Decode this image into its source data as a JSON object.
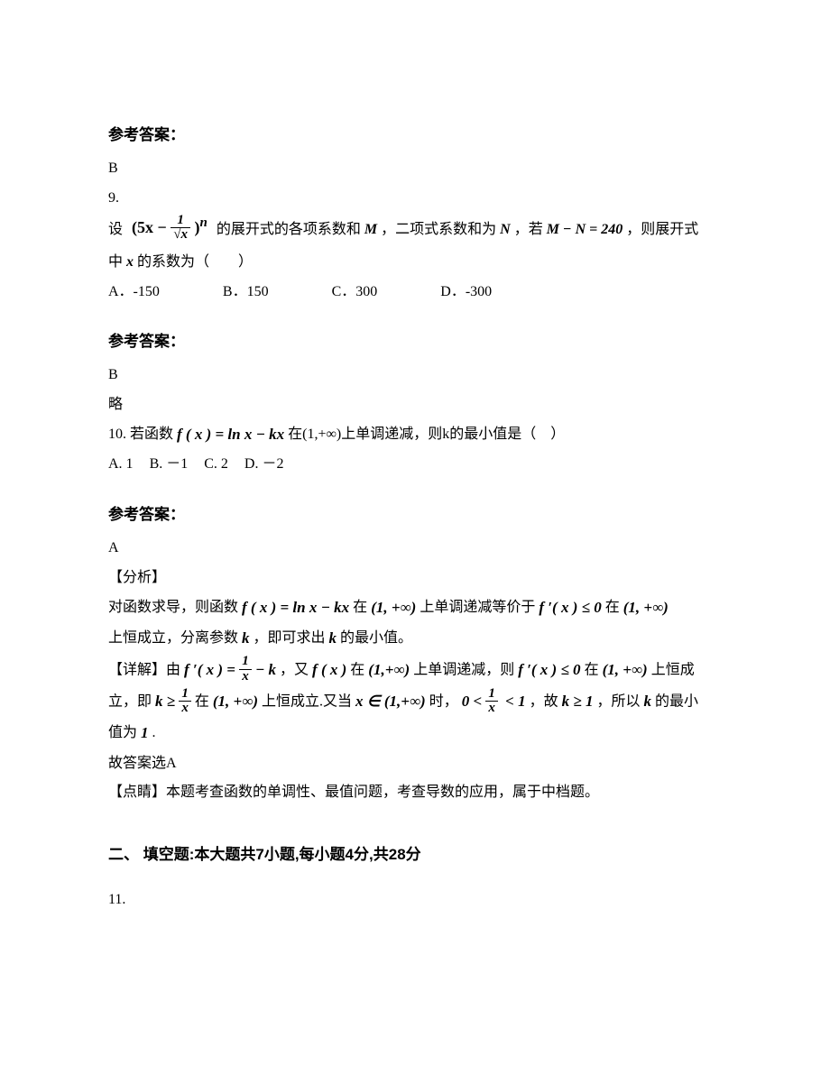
{
  "ans_heading": "参考答案：",
  "q8_answer": "B",
  "q9": {
    "num": "9.",
    "prefix": "设",
    "expr_lead": "(5x −",
    "expr_frac_num": "1",
    "expr_frac_den": "√x",
    "expr_tail": ")",
    "expr_sup": "n",
    "mid1": " 的展开式的各项系数和 ",
    "M": "M",
    "mid2": "，二项式系数和为 ",
    "N": "N",
    "mid3": "，若 ",
    "eqn": "M − N = 240",
    "mid4": "，则展开式",
    "line2_pre": "中 ",
    "x": "x",
    "line2_post": " 的系数为（　　）",
    "optA": "A．-150",
    "optB": "B．150",
    "optC": "C．300",
    "optD": "D．-300",
    "answer": "B",
    "note": "略"
  },
  "q10": {
    "num": "10. ",
    "pre": "若函数 ",
    "fx": "f ( x ) = ln x − kx",
    "mid": " 在(1,+∞)上单调递减，则k的最小值是（　）",
    "optA": "A. 1",
    "optB": "B. －1",
    "optC": "C. 2",
    "optD": "D. －2",
    "answer": "A",
    "analysis_label": "【分析】",
    "analysis_p1a": "对函数求导，则函数 ",
    "f1": "f ( x ) = ln x − kx",
    "analysis_p1b": " 在 ",
    "int1": "(1, +∞)",
    "analysis_p1c": " 上单调递减等价于 ",
    "fpx0": "f ′( x ) ≤ 0",
    "analysis_p1d": " 在 ",
    "int2": "(1, +∞)",
    "analysis_p2a": "上恒成立，分离参数 ",
    "k": "k",
    "analysis_p2b": "，即可求出 ",
    "analysis_p2c": " 的最小值。",
    "detail_label": "【详解】由 ",
    "fpx_a": "f ′( x ) =",
    "frac1n": "1",
    "frac1d": "x",
    "fpx_b": " − k",
    "detail_mid1": "，又 ",
    "fxi": "f ( x )",
    "detail_mid2": " 在 ",
    "int3": "(1,+∞)",
    "detail_mid3": " 上单调递减，则 ",
    "fpx0b": "f ′( x ) ≤ 0",
    "detail_mid4": " 在 ",
    "int4": "(1, +∞)",
    "detail_mid5": " 上恒成",
    "line4a": "立，即 ",
    "kge": "k ≥",
    "frac2n": "1",
    "frac2d": "x",
    "line4b": " 在 ",
    "int5": "(1, +∞)",
    "line4c": " 上恒成立.又当 ",
    "xin": "x ∈ (1,+∞)",
    "line4d": " 时，",
    "ineq_l": "0 <",
    "frac3n": "1",
    "frac3d": "x",
    "ineq_r": "< 1",
    "line4e": "，故 ",
    "kge1": "k ≥ 1",
    "line4f": "，所以 ",
    "line4g": " 的最小",
    "line5a": "值为 ",
    "one": "1",
    "line5b": ".",
    "conclude": "故答案选A",
    "dianjing_label": "【点睛】",
    "dianjing": "本题考查函数的单调性、最值问题，考查导数的应用，属于中档题。"
  },
  "fill_heading": "二、 填空题:本大题共7小题,每小题4分,共28分",
  "q11": "11."
}
